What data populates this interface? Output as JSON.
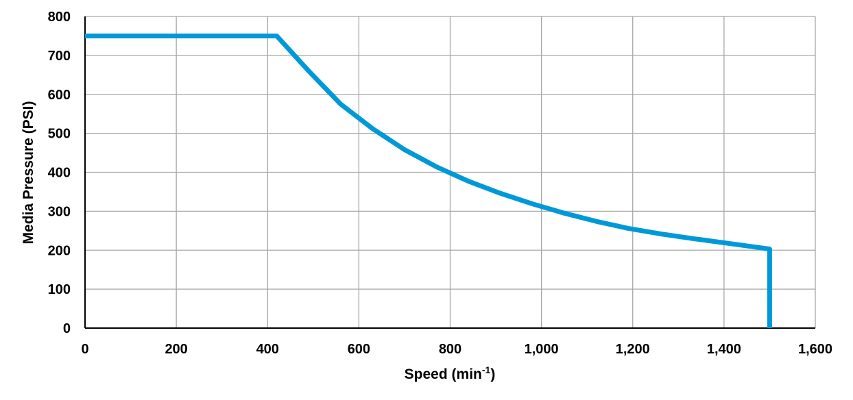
{
  "chart_data": {
    "type": "line",
    "title": "",
    "xlabel": "Speed (min",
    "xlabel_sup": "-1",
    "xlabel_close": ")",
    "ylabel": "Media Pressure (PSI)",
    "xlim": [
      0,
      1600
    ],
    "ylim": [
      0,
      800
    ],
    "xticks": [
      0,
      200,
      400,
      600,
      800,
      1000,
      1200,
      1400,
      1600
    ],
    "xtick_labels": [
      "0",
      "200",
      "400",
      "600",
      "800",
      "1,000",
      "1,200",
      "1,400",
      "1,600"
    ],
    "yticks": [
      0,
      100,
      200,
      300,
      400,
      500,
      600,
      700,
      800
    ],
    "ytick_labels": [
      "0",
      "100",
      "200",
      "300",
      "400",
      "500",
      "600",
      "700",
      "800"
    ],
    "grid": true,
    "legend": "none",
    "series": [
      {
        "color": "#0099D8",
        "x": [
          0,
          420,
          490,
          560,
          630,
          700,
          770,
          840,
          910,
          980,
          1050,
          1120,
          1190,
          1260,
          1330,
          1400,
          1500,
          1500
        ],
        "y": [
          750,
          750,
          660,
          575,
          512,
          458,
          414,
          377,
          346,
          319,
          295,
          274,
          256,
          242,
          230,
          219,
          203,
          0
        ]
      }
    ]
  }
}
